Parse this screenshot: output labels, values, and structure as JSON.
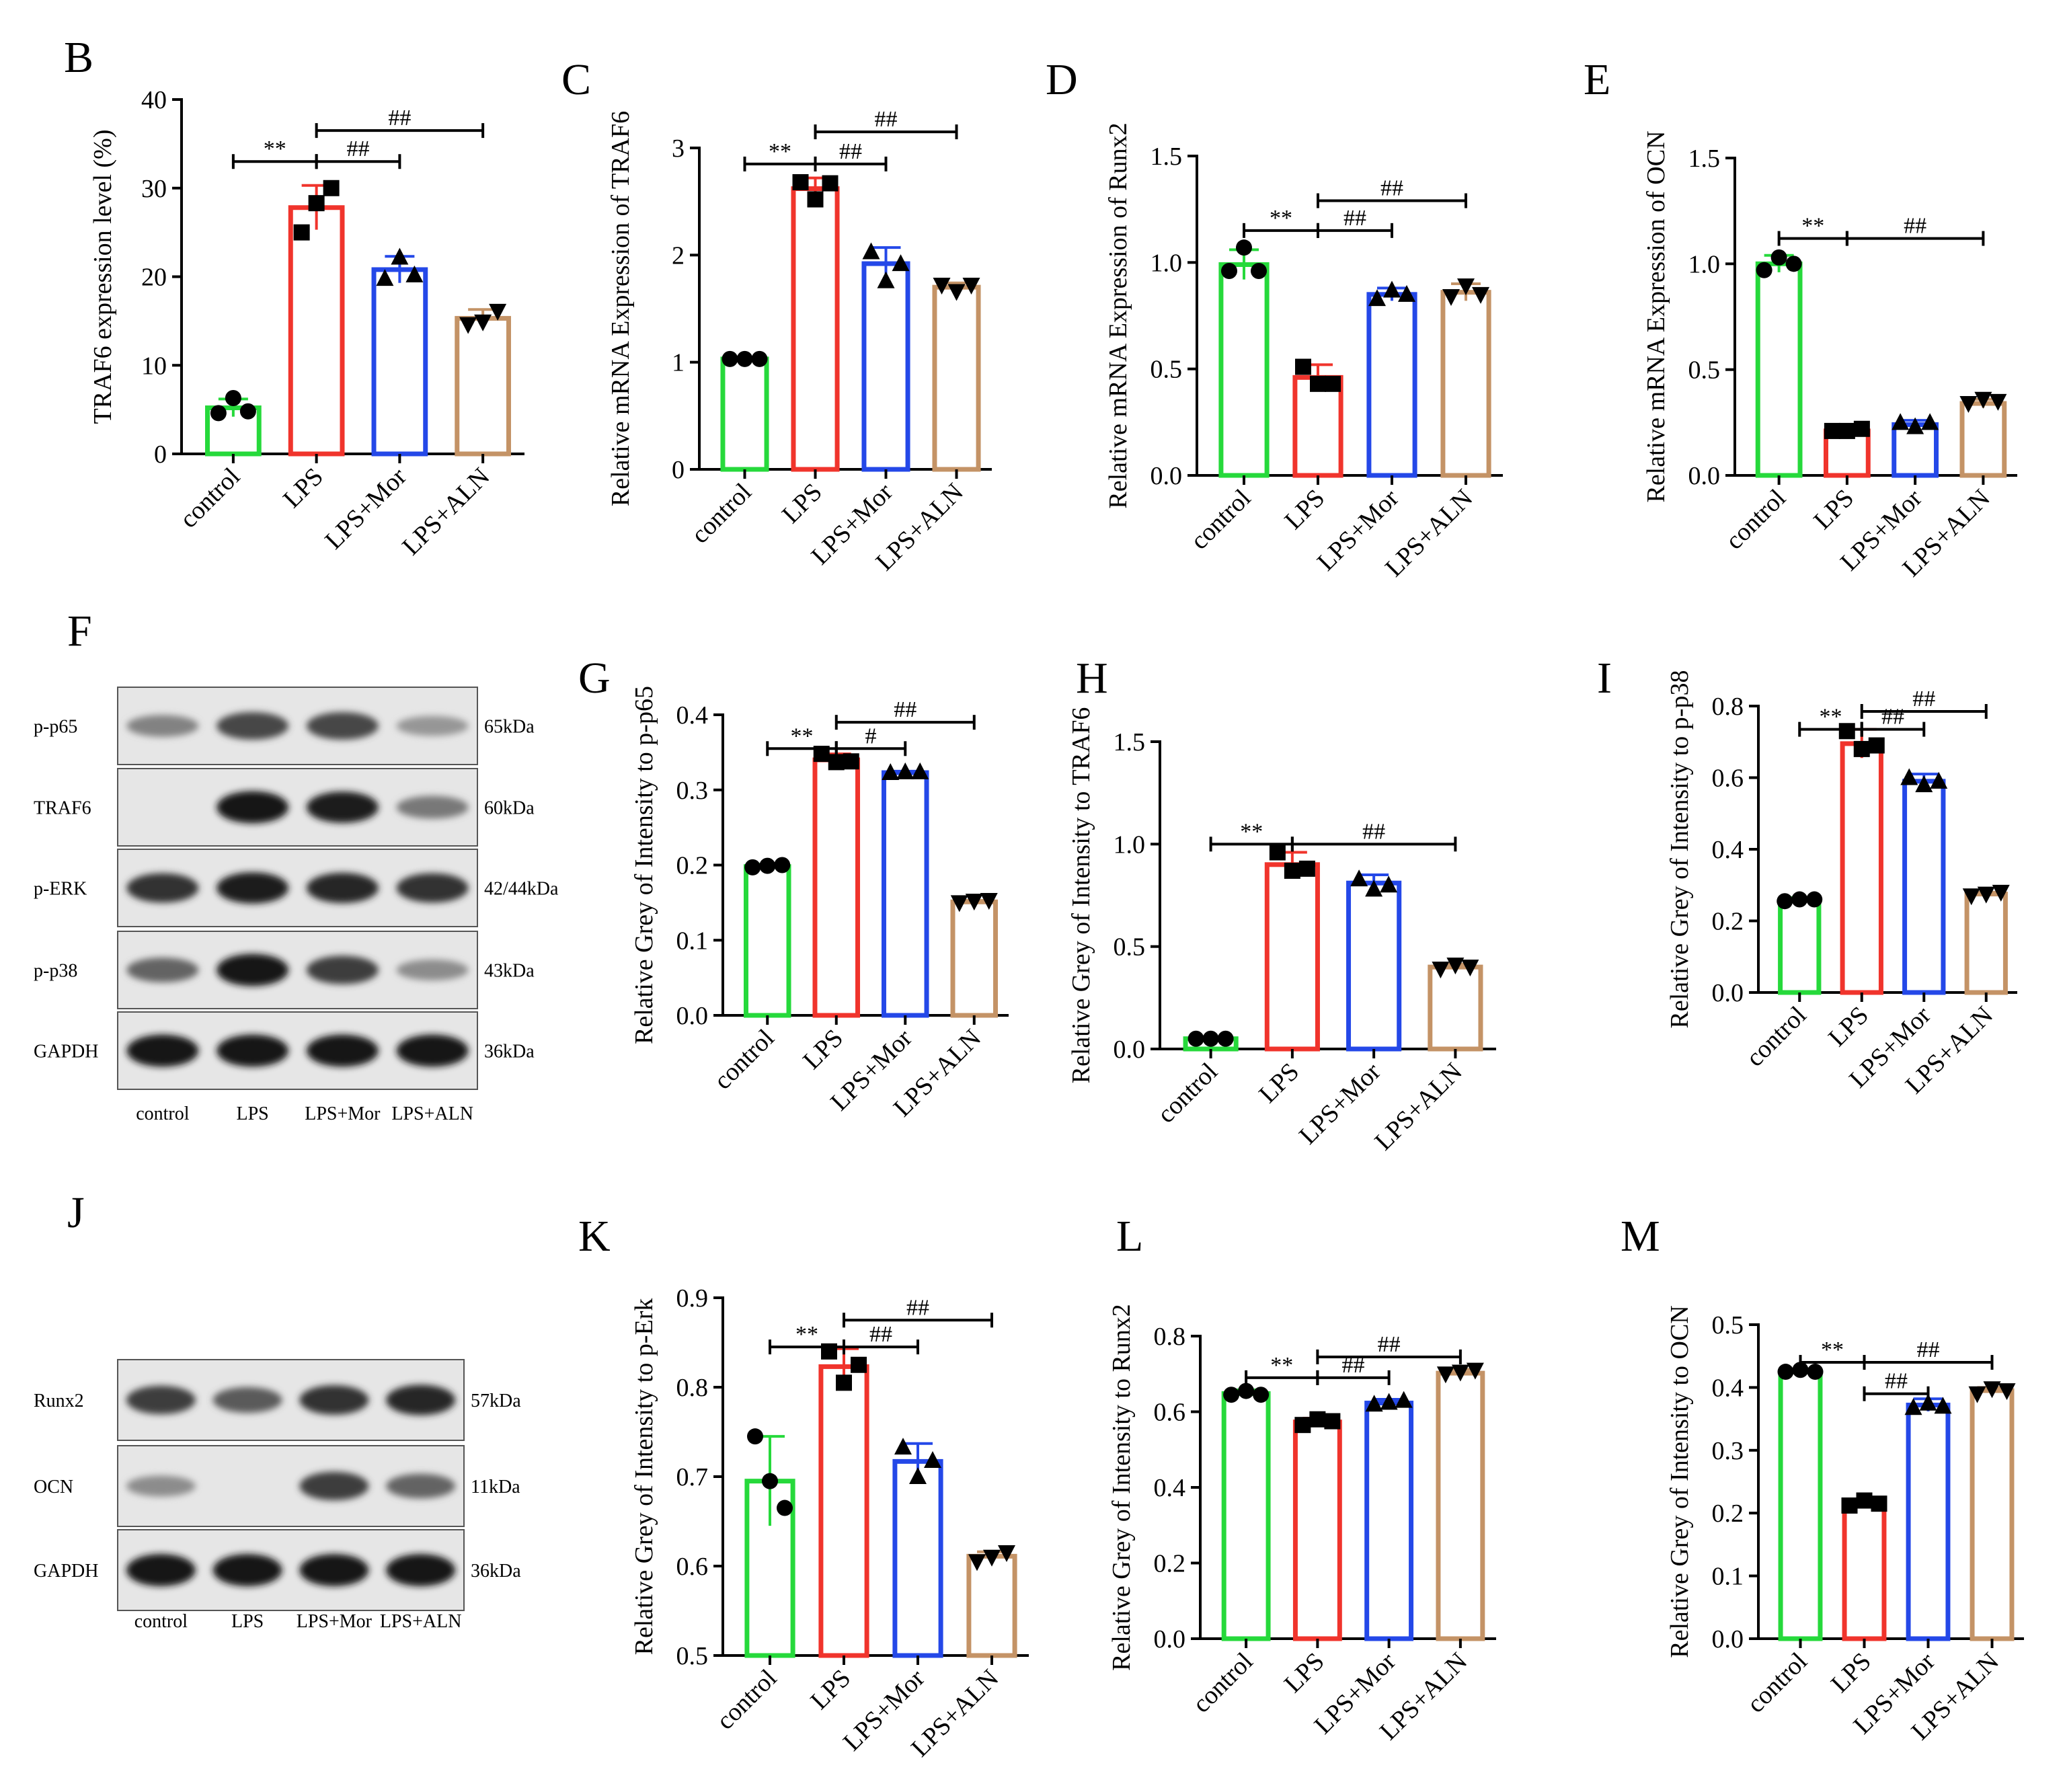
{
  "colors": {
    "control": "#26d93b",
    "LPS": "#f0342c",
    "LPS+Mor": "#2448e8",
    "LPS+ALN": "#c49366",
    "axis": "#000000"
  },
  "chart_data": [
    {
      "id": "B",
      "type": "bar",
      "panel_label": "B",
      "ylabel": "TRAF6 expression level (%)",
      "categories": [
        "control",
        "LPS",
        "LPS+Mor",
        "LPS+ALN"
      ],
      "values": [
        5.2,
        27.8,
        20.8,
        15.3
      ],
      "errors": [
        1.0,
        2.5,
        1.5,
        1.0
      ],
      "points": [
        [
          4.6,
          6.3,
          4.8
        ],
        [
          25.0,
          28.3,
          30.0
        ],
        [
          19.8,
          22.2,
          20.2
        ],
        [
          14.6,
          14.9,
          16.1
        ]
      ],
      "ylim": [
        0,
        40
      ],
      "yticks": [
        "0",
        "10",
        "20",
        "30",
        "40"
      ],
      "annotations": [
        {
          "text": "**",
          "from": 0,
          "to": 1,
          "y": 33.0
        },
        {
          "text": "##",
          "from": 1,
          "to": 2,
          "y": 33.0
        },
        {
          "text": "##",
          "from": 1,
          "to": 3,
          "y": 36.5
        }
      ]
    },
    {
      "id": "C",
      "type": "bar",
      "panel_label": "C",
      "ylabel": "Relative mRNA Expression of TRAF6",
      "categories": [
        "control",
        "LPS",
        "LPS+Mor",
        "LPS+ALN"
      ],
      "values": [
        1.03,
        2.62,
        1.92,
        1.7
      ],
      "errors": [
        0.01,
        0.1,
        0.15,
        0.04
      ],
      "points": [
        [
          1.03,
          1.03,
          1.03
        ],
        [
          2.68,
          2.52,
          2.67
        ],
        [
          2.03,
          1.76,
          1.92
        ],
        [
          1.72,
          1.66,
          1.72
        ]
      ],
      "ylim": [
        0,
        3
      ],
      "yticks": [
        "0",
        "1",
        "2",
        "3"
      ],
      "annotations": [
        {
          "text": "**",
          "from": 0,
          "to": 1,
          "y": 2.85
        },
        {
          "text": "##",
          "from": 1,
          "to": 2,
          "y": 2.85
        },
        {
          "text": "##",
          "from": 1,
          "to": 3,
          "y": 3.15
        }
      ]
    },
    {
      "id": "D",
      "type": "bar",
      "panel_label": "D",
      "ylabel": "Relative mRNA Expression of Runx2",
      "categories": [
        "control",
        "LPS",
        "LPS+Mor",
        "LPS+ALN"
      ],
      "values": [
        0.99,
        0.46,
        0.85,
        0.86
      ],
      "errors": [
        0.07,
        0.06,
        0.03,
        0.04
      ],
      "points": [
        [
          0.96,
          1.07,
          0.96
        ],
        [
          0.51,
          0.43,
          0.43
        ],
        [
          0.83,
          0.87,
          0.85
        ],
        [
          0.84,
          0.89,
          0.85
        ]
      ],
      "ylim": [
        0,
        1.5
      ],
      "yticks": [
        "0.0",
        "0.5",
        "1.0",
        "1.5"
      ],
      "annotations": [
        {
          "text": "**",
          "from": 0,
          "to": 1,
          "y": 1.15
        },
        {
          "text": "##",
          "from": 1,
          "to": 2,
          "y": 1.15
        },
        {
          "text": "##",
          "from": 1,
          "to": 3,
          "y": 1.29
        }
      ]
    },
    {
      "id": "E",
      "type": "bar",
      "panel_label": "E",
      "ylabel": "Relative mRNA Expression of OCN",
      "categories": [
        "control",
        "LPS",
        "LPS+Mor",
        "LPS+ALN"
      ],
      "values": [
        1.0,
        0.21,
        0.24,
        0.34
      ],
      "errors": [
        0.04,
        0.02,
        0.02,
        0.02
      ],
      "points": [
        [
          0.97,
          1.03,
          1.0
        ],
        [
          0.21,
          0.21,
          0.22
        ],
        [
          0.25,
          0.23,
          0.25
        ],
        [
          0.34,
          0.36,
          0.35
        ]
      ],
      "ylim": [
        0,
        1.5
      ],
      "yticks": [
        "0.0",
        "0.5",
        "1.0",
        "1.5"
      ],
      "annotations": [
        {
          "text": "**",
          "from": 0,
          "to": 1,
          "y": 1.12
        },
        {
          "text": "##",
          "from": 1,
          "to": 3,
          "y": 1.12
        }
      ]
    },
    {
      "id": "G",
      "type": "bar",
      "panel_label": "G",
      "ylabel": "Relative Grey of Intensity to p-p65",
      "categories": [
        "control",
        "LPS",
        "LPS+Mor",
        "LPS+ALN"
      ],
      "values": [
        0.198,
        0.34,
        0.323,
        0.151
      ],
      "errors": [
        0.003,
        0.008,
        0.002,
        0.002
      ],
      "points": [
        [
          0.197,
          0.199,
          0.2
        ],
        [
          0.348,
          0.337,
          0.338
        ],
        [
          0.323,
          0.324,
          0.324
        ],
        [
          0.15,
          0.152,
          0.153
        ]
      ],
      "ylim": [
        0,
        0.4
      ],
      "yticks": [
        "0.0",
        "0.1",
        "0.2",
        "0.3",
        "0.4"
      ],
      "annotations": [
        {
          "text": "**",
          "from": 0,
          "to": 1,
          "y": 0.355
        },
        {
          "text": "#",
          "from": 1,
          "to": 2,
          "y": 0.355
        },
        {
          "text": "##",
          "from": 1,
          "to": 3,
          "y": 0.39
        }
      ]
    },
    {
      "id": "H",
      "type": "bar",
      "panel_label": "H",
      "ylabel": "Relative Grey of Intensity to TRAF6",
      "categories": [
        "control",
        "LPS",
        "LPS+Mor",
        "LPS+ALN"
      ],
      "values": [
        0.05,
        0.9,
        0.81,
        0.4
      ],
      "errors": [
        0.005,
        0.06,
        0.04,
        0.015
      ],
      "points": [
        [
          0.05,
          0.05,
          0.05
        ],
        [
          0.96,
          0.87,
          0.88
        ],
        [
          0.83,
          0.78,
          0.8
        ],
        [
          0.39,
          0.41,
          0.4
        ]
      ],
      "ylim": [
        0,
        1.5
      ],
      "yticks": [
        "0.0",
        "0.5",
        "1.0",
        "1.5"
      ],
      "annotations": [
        {
          "text": "**",
          "from": 0,
          "to": 1,
          "y": 1.0
        },
        {
          "text": "##",
          "from": 1,
          "to": 3,
          "y": 1.0
        }
      ]
    },
    {
      "id": "I",
      "type": "bar",
      "panel_label": "I",
      "ylabel": "Relative Grey of Intensity to p-p38",
      "categories": [
        "control",
        "LPS",
        "LPS+Mor",
        "LPS+ALN"
      ],
      "values": [
        0.26,
        0.695,
        0.59,
        0.275
      ],
      "errors": [
        0.005,
        0.04,
        0.02,
        0.005
      ],
      "points": [
        [
          0.255,
          0.26,
          0.26
        ],
        [
          0.73,
          0.68,
          0.69
        ],
        [
          0.6,
          0.58,
          0.59
        ],
        [
          0.27,
          0.275,
          0.28
        ]
      ],
      "ylim": [
        0,
        0.8
      ],
      "yticks": [
        "0.0",
        "0.2",
        "0.4",
        "0.6",
        "0.8"
      ],
      "annotations": [
        {
          "text": "**",
          "from": 0,
          "to": 1,
          "y": 0.735
        },
        {
          "text": "##",
          "from": 1,
          "to": 2,
          "y": 0.735
        },
        {
          "text": "##",
          "from": 1,
          "to": 3,
          "y": 0.785
        }
      ]
    },
    {
      "id": "K",
      "type": "bar",
      "panel_label": "K",
      "ylabel": "Relative Grey of Intensity to p-Erk",
      "categories": [
        "control",
        "LPS",
        "LPS+Mor",
        "LPS+ALN"
      ],
      "values": [
        0.695,
        0.823,
        0.717,
        0.611
      ],
      "errors": [
        0.05,
        0.02,
        0.02,
        0.005
      ],
      "points": [
        [
          0.745,
          0.695,
          0.665
        ],
        [
          0.84,
          0.805,
          0.825
        ],
        [
          0.733,
          0.7,
          0.718
        ],
        [
          0.605,
          0.61,
          0.615
        ]
      ],
      "ylim": [
        0.5,
        0.9
      ],
      "yticks": [
        "0.5",
        "0.6",
        "0.7",
        "0.8",
        "0.9"
      ],
      "annotations": [
        {
          "text": "**",
          "from": 0,
          "to": 1,
          "y": 0.845
        },
        {
          "text": "##",
          "from": 1,
          "to": 2,
          "y": 0.845
        },
        {
          "text": "##",
          "from": 1,
          "to": 3,
          "y": 0.875
        }
      ]
    },
    {
      "id": "L",
      "type": "bar",
      "panel_label": "L",
      "ylabel": "Relative Grey of Intensity to Runx2",
      "categories": [
        "control",
        "LPS",
        "LPS+Mor",
        "LPS+ALN"
      ],
      "values": [
        0.648,
        0.573,
        0.623,
        0.702
      ],
      "errors": [
        0.01,
        0.01,
        0.01,
        0.01
      ],
      "points": [
        [
          0.645,
          0.655,
          0.645
        ],
        [
          0.565,
          0.58,
          0.575
        ],
        [
          0.62,
          0.625,
          0.63
        ],
        [
          0.7,
          0.705,
          0.71
        ]
      ],
      "ylim": [
        0,
        0.8
      ],
      "yticks": [
        "0.0",
        "0.2",
        "0.4",
        "0.6",
        "0.8"
      ],
      "annotations": [
        {
          "text": "**",
          "from": 0,
          "to": 1,
          "y": 0.69
        },
        {
          "text": "##",
          "from": 1,
          "to": 2,
          "y": 0.69
        },
        {
          "text": "##",
          "from": 1,
          "to": 3,
          "y": 0.745
        }
      ]
    },
    {
      "id": "M",
      "type": "bar",
      "panel_label": "M",
      "ylabel": "Relative Grey of Intensity to OCN",
      "categories": [
        "control",
        "LPS",
        "LPS+Mor",
        "LPS+ALN"
      ],
      "values": [
        0.425,
        0.215,
        0.372,
        0.395
      ],
      "errors": [
        0.003,
        0.005,
        0.01,
        0.005
      ],
      "points": [
        [
          0.425,
          0.428,
          0.425
        ],
        [
          0.212,
          0.22,
          0.215
        ],
        [
          0.368,
          0.375,
          0.37
        ],
        [
          0.39,
          0.398,
          0.395
        ]
      ],
      "ylim": [
        0,
        0.5
      ],
      "yticks": [
        "0.0",
        "0.1",
        "0.2",
        "0.3",
        "0.4",
        "0.5"
      ],
      "annotations": [
        {
          "text": "**",
          "from": 0,
          "to": 1,
          "y": 0.44
        },
        {
          "text": "##",
          "from": 1,
          "to": 3,
          "y": 0.44
        },
        {
          "text": "##",
          "from": 1,
          "to": 2,
          "y": 0.39
        }
      ]
    }
  ],
  "blots": {
    "F": {
      "panel_label": "F",
      "proteins": [
        "p-p65",
        "TRAF6",
        "p-ERK",
        "p-p38",
        "GAPDH"
      ],
      "sizes": [
        "65kDa",
        "60kDa",
        "42/44kDa",
        "43kDa",
        "36kDa"
      ],
      "lanes": [
        "control",
        "LPS",
        "LPS+Mor",
        "LPS+ALN"
      ],
      "intensity": [
        [
          0.45,
          0.75,
          0.75,
          0.35
        ],
        [
          0.0,
          1.0,
          0.95,
          0.5
        ],
        [
          0.85,
          0.95,
          0.9,
          0.85
        ],
        [
          0.6,
          1.0,
          0.8,
          0.4
        ],
        [
          1.0,
          1.0,
          1.0,
          1.0
        ]
      ]
    },
    "J": {
      "panel_label": "J",
      "proteins": [
        "Runx2",
        "OCN",
        "GAPDH"
      ],
      "sizes": [
        "57kDa",
        "11kDa",
        "36kDa"
      ],
      "lanes": [
        "control",
        "LPS",
        "LPS+Mor",
        "LPS+ALN"
      ],
      "intensity": [
        [
          0.8,
          0.65,
          0.85,
          0.9
        ],
        [
          0.4,
          0.0,
          0.8,
          0.6
        ],
        [
          1.0,
          1.0,
          1.0,
          1.0
        ]
      ]
    }
  }
}
